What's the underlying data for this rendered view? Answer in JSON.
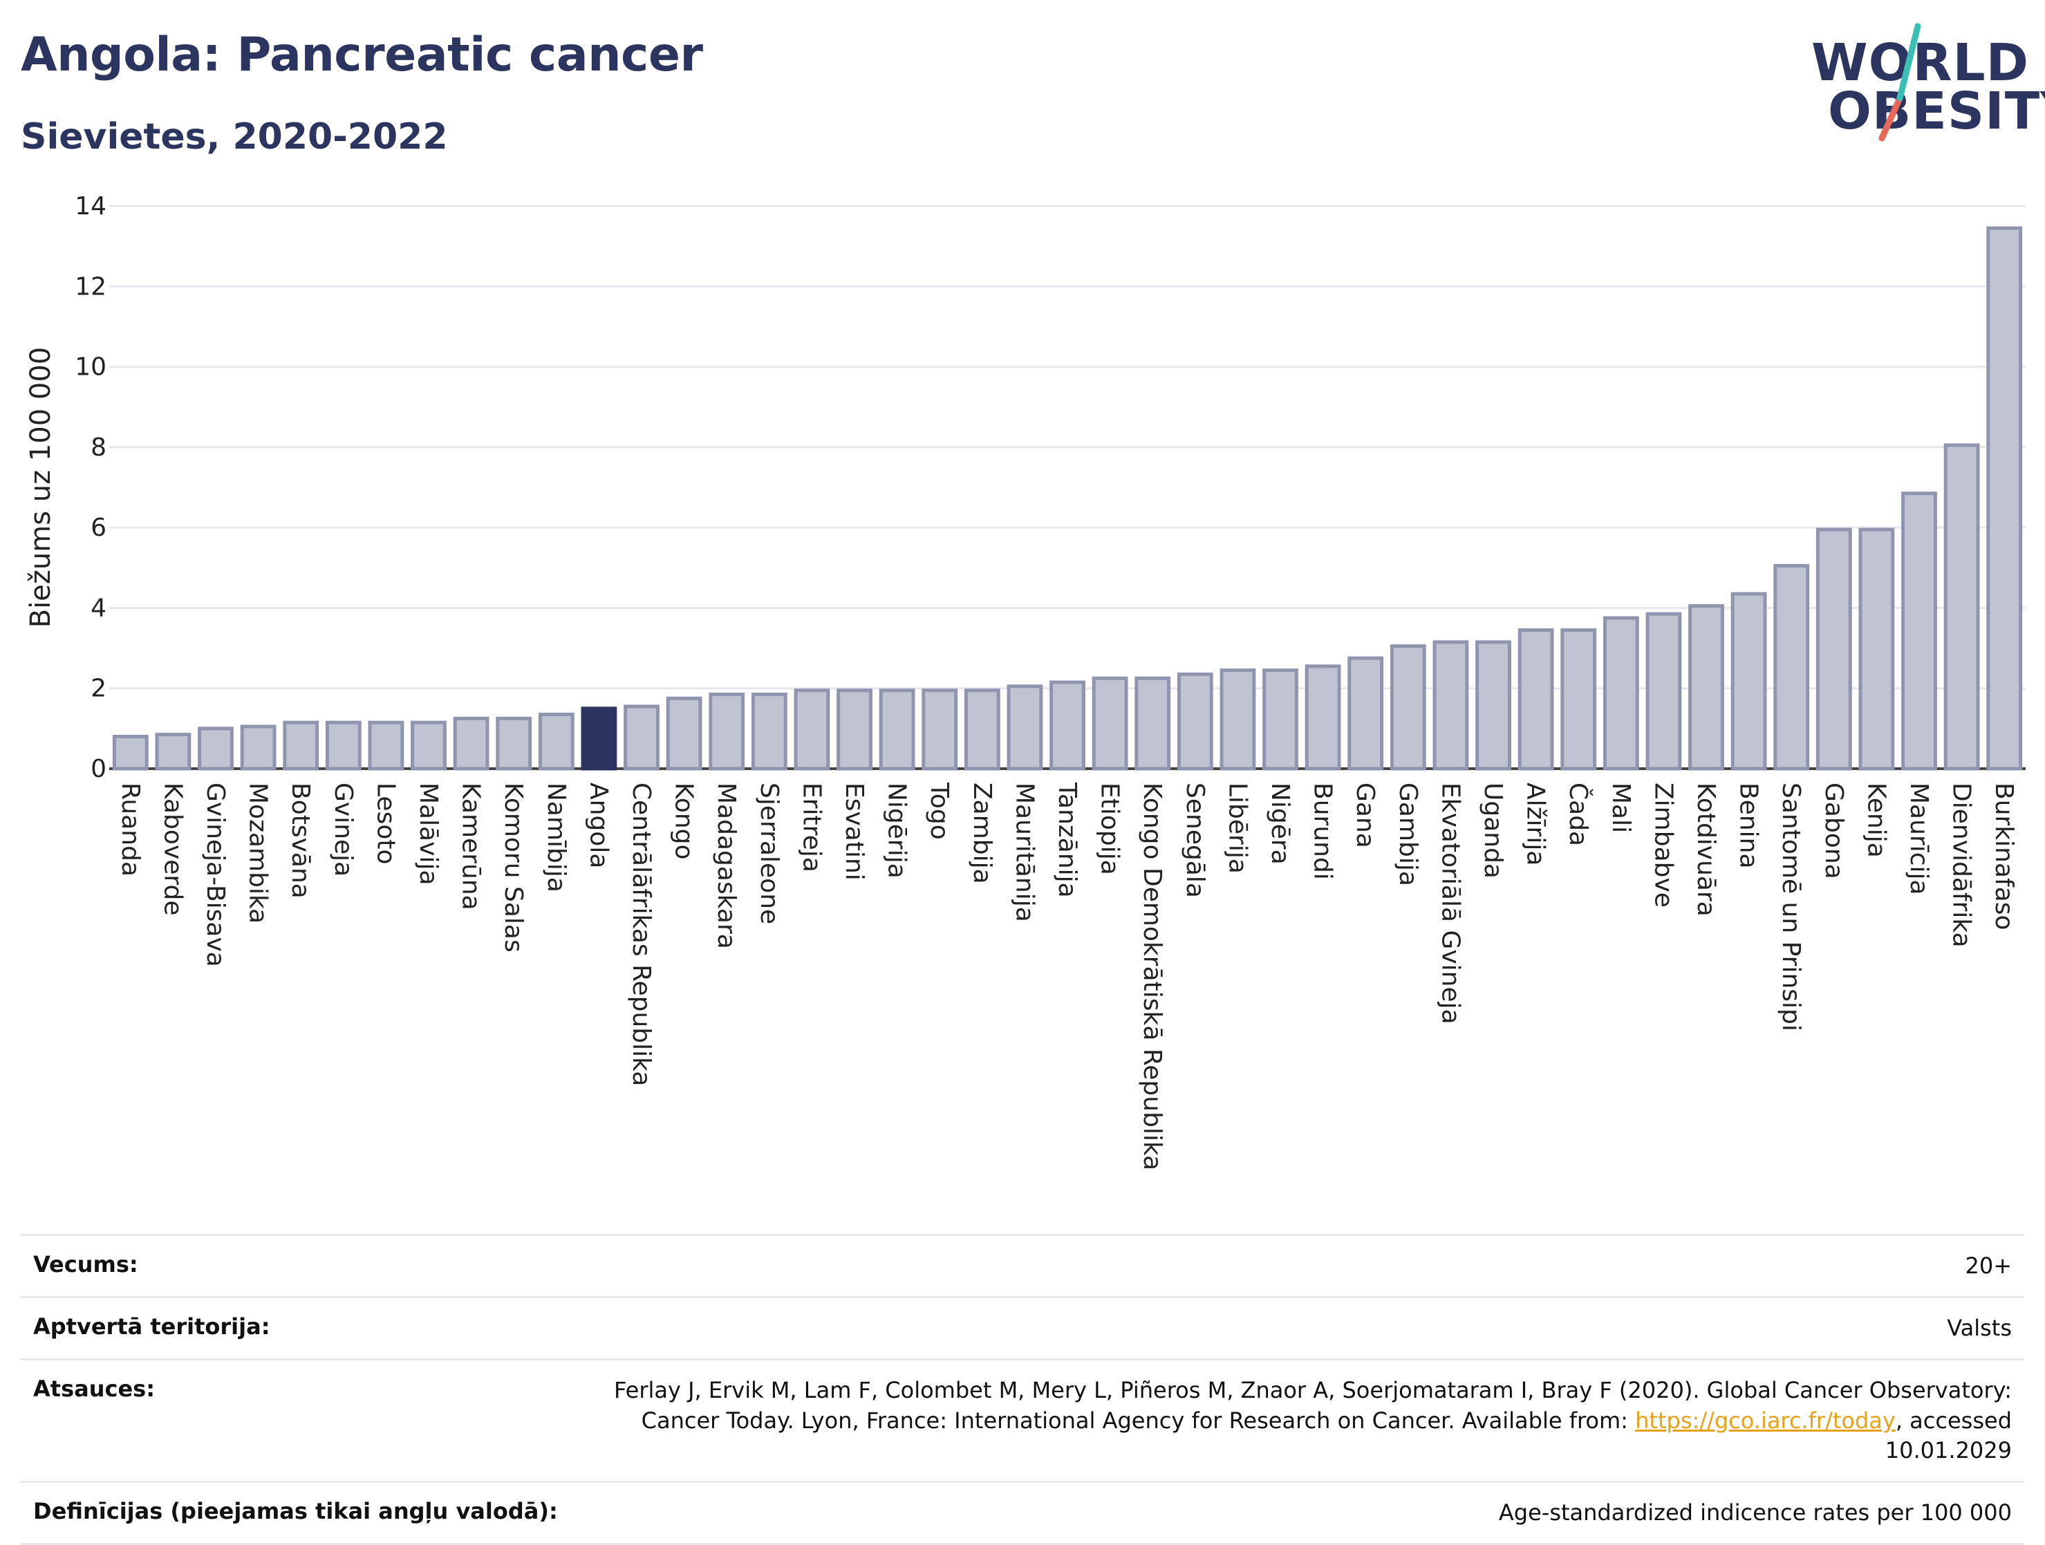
{
  "title": "Angola: Pancreatic cancer",
  "subtitle": "Sievietes, 2020-2022",
  "logo": {
    "line1": "WORLD",
    "line2": "OBESITY",
    "slash_colors": [
      "#3bbfb4",
      "#e8685a"
    ]
  },
  "colors": {
    "bar": "#bfc3d2",
    "bar_border": "#8f95ae",
    "highlight": "#2b3560",
    "grid": "#e6e6ee"
  },
  "chart_data": {
    "type": "bar",
    "ylabel": "Biežums uz 100 000",
    "ylim": [
      0,
      14
    ],
    "yticks": [
      0,
      2,
      4,
      6,
      8,
      10,
      12,
      14
    ],
    "grid": true,
    "highlight": "Angola",
    "categories": [
      "Ruanda",
      "Kaboverde",
      "Gvineja-Bisava",
      "Mozambika",
      "Botsvāna",
      "Gvineja",
      "Lesoto",
      "Malāvija",
      "Kamerūna",
      "Komoru Salas",
      "Namībija",
      "Angola",
      "Centrālāfrikas Republika",
      "Kongo",
      "Madagaskara",
      "Sjerraleone",
      "Eritreja",
      "Esvatini",
      "Nigērija",
      "Togo",
      "Zambija",
      "Mauritānija",
      "Tanzānija",
      "Etiopija",
      "Kongo Demokrātiskā Republika",
      "Senegāla",
      "Libērija",
      "Nigēra",
      "Burundi",
      "Gana",
      "Gambija",
      "Ekvatoriālā Gvineja",
      "Uganda",
      "Alžīrija",
      "Čada",
      "Mali",
      "Zimbabve",
      "Kotdivuāra",
      "Benina",
      "Santomē un Prinsipi",
      "Gabona",
      "Kenija",
      "Maurīcija",
      "Dienvidāfrika",
      "Burkinafaso"
    ],
    "values": [
      0.8,
      0.85,
      1.0,
      1.05,
      1.15,
      1.15,
      1.15,
      1.15,
      1.25,
      1.25,
      1.35,
      1.5,
      1.55,
      1.75,
      1.85,
      1.85,
      1.95,
      1.95,
      1.95,
      1.95,
      1.95,
      2.05,
      2.15,
      2.25,
      2.25,
      2.35,
      2.45,
      2.45,
      2.55,
      2.75,
      3.05,
      3.15,
      3.15,
      3.45,
      3.45,
      3.75,
      3.85,
      4.05,
      4.35,
      5.05,
      5.95,
      5.95,
      6.85,
      8.05,
      13.45
    ]
  },
  "meta": [
    {
      "label": "Vecums:",
      "value": "20+"
    },
    {
      "label": "Aptvertā teritorija:",
      "value": "Valsts"
    },
    {
      "label": "Atsauces:",
      "value_pre": "Ferlay J, Ervik M, Lam F, Colombet M, Mery L, Piñeros M, Znaor A, Soerjomataram I, Bray F (2020). Global Cancer Observatory: Cancer Today. Lyon, France: International Agency for Research on Cancer. Available from: ",
      "link": "https://gco.iarc.fr/today",
      "value_post": ", accessed 10.01.2029"
    },
    {
      "label": "Definīcijas (pieejamas tikai angļu valodā):",
      "value": "Age-standardized indicence rates per 100 000"
    }
  ]
}
